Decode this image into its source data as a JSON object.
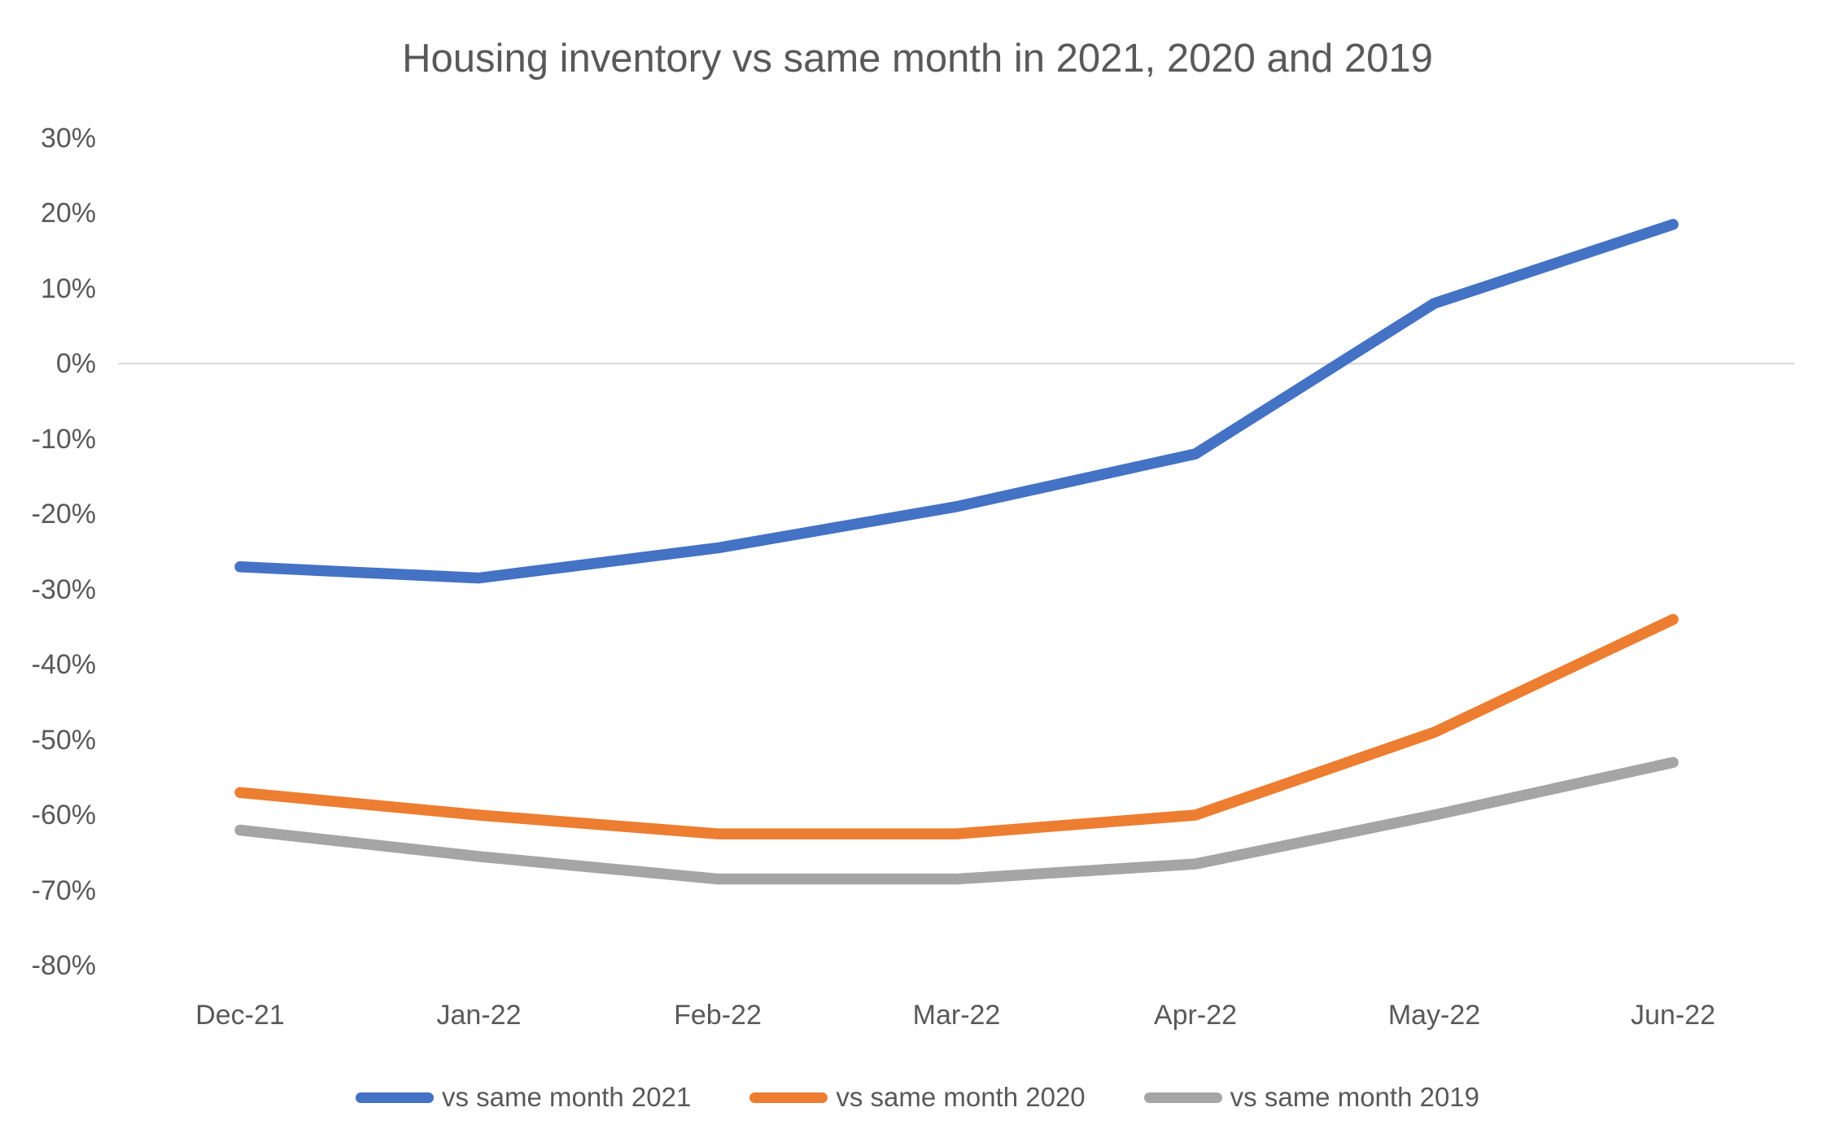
{
  "chart_data": {
    "type": "line",
    "title": "Housing inventory vs same month in 2021, 2020 and 2019",
    "categories": [
      "Dec-21",
      "Jan-22",
      "Feb-22",
      "Mar-22",
      "Apr-22",
      "May-22",
      "Jun-22"
    ],
    "series": [
      {
        "name": "vs same month 2021",
        "color": "#4472C4",
        "values": [
          -27,
          -28.5,
          -24.5,
          -19,
          -12,
          8,
          18.5
        ]
      },
      {
        "name": "vs same month 2020",
        "color": "#ED7D31",
        "values": [
          -57,
          -60,
          -62.5,
          -62.5,
          -60,
          -49,
          -34
        ]
      },
      {
        "name": "vs same month 2019",
        "color": "#A5A5A5",
        "values": [
          -62,
          -65.5,
          -68.5,
          -68.5,
          -66.5,
          -60,
          -53
        ]
      }
    ],
    "ylabel": "",
    "xlabel": "",
    "ylim": [
      -80,
      30
    ],
    "ytick_step": 10,
    "ytick_labels": [
      "30%",
      "20%",
      "10%",
      "0%",
      "-10%",
      "-20%",
      "-30%",
      "-40%",
      "-50%",
      "-60%",
      "-70%",
      "-80%"
    ],
    "grid": "zero-line-only",
    "gridline_color": "#D9D9D9",
    "text_color": "#595959",
    "legend_position": "bottom"
  }
}
